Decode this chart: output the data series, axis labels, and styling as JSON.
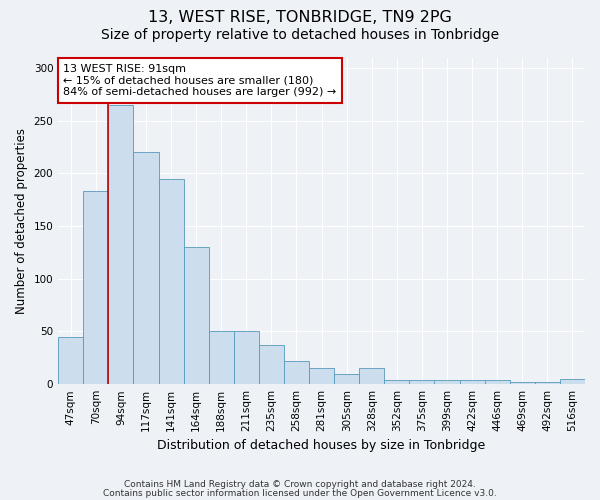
{
  "title": "13, WEST RISE, TONBRIDGE, TN9 2PG",
  "subtitle": "Size of property relative to detached houses in Tonbridge",
  "xlabel": "Distribution of detached houses by size in Tonbridge",
  "ylabel": "Number of detached properties",
  "categories": [
    "47sqm",
    "70sqm",
    "94sqm",
    "117sqm",
    "141sqm",
    "164sqm",
    "188sqm",
    "211sqm",
    "235sqm",
    "258sqm",
    "281sqm",
    "305sqm",
    "328sqm",
    "352sqm",
    "375sqm",
    "399sqm",
    "422sqm",
    "446sqm",
    "469sqm",
    "492sqm",
    "516sqm"
  ],
  "values": [
    45,
    183,
    265,
    220,
    195,
    130,
    50,
    50,
    37,
    22,
    15,
    10,
    15,
    4,
    4,
    4,
    4,
    4,
    2,
    2,
    5
  ],
  "bar_color": "#ccdded",
  "bar_edge_color": "#5599bb",
  "annotation_text_line1": "13 WEST RISE: 91sqm",
  "annotation_text_line2": "← 15% of detached houses are smaller (180)",
  "annotation_text_line3": "84% of semi-detached houses are larger (992) →",
  "annotation_box_color": "#ffffff",
  "annotation_box_edge": "#cc0000",
  "red_line_x": 1.5,
  "ylim": [
    0,
    310
  ],
  "yticks": [
    0,
    50,
    100,
    150,
    200,
    250,
    300
  ],
  "footer1": "Contains HM Land Registry data © Crown copyright and database right 2024.",
  "footer2": "Contains public sector information licensed under the Open Government Licence v3.0.",
  "background_color": "#eef2f7",
  "grid_color": "#ffffff",
  "title_fontsize": 11.5,
  "subtitle_fontsize": 10,
  "ylabel_fontsize": 8.5,
  "xlabel_fontsize": 9,
  "tick_fontsize": 7.5,
  "footer_fontsize": 6.5
}
